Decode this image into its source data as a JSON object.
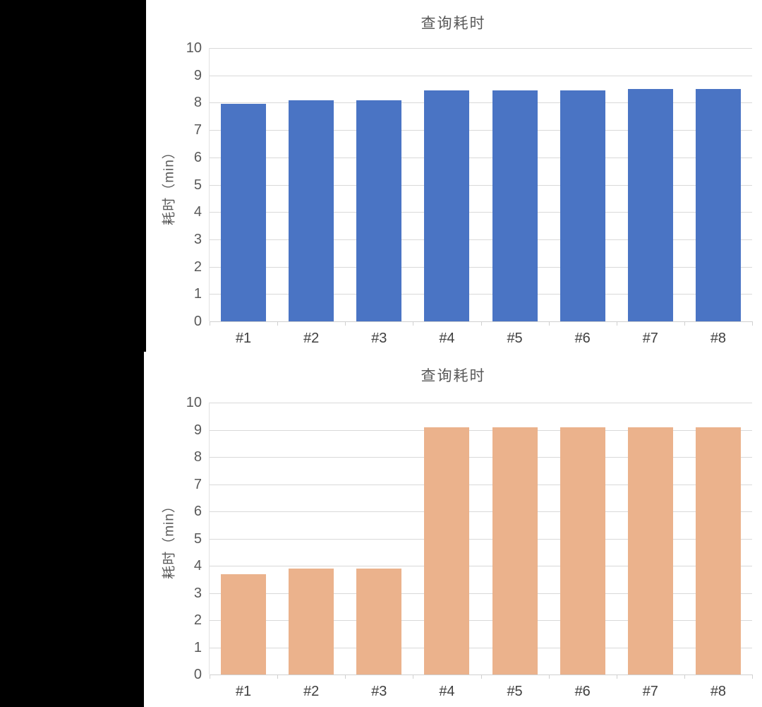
{
  "window": {
    "background_color": "#FFFFFF",
    "left_mask_color": "#000000"
  },
  "chart_data": [
    {
      "type": "bar",
      "title": "查询耗时",
      "xlabel": "",
      "ylabel": "耗时（min）",
      "categories": [
        "#1",
        "#2",
        "#3",
        "#4",
        "#5",
        "#6",
        "#7",
        "#8"
      ],
      "values": [
        7.95,
        8.1,
        8.1,
        8.45,
        8.45,
        8.45,
        8.5,
        8.5
      ],
      "ylim": [
        0,
        10
      ],
      "ytick_step": 1,
      "yticks": [
        0,
        1,
        2,
        3,
        4,
        5,
        6,
        7,
        8,
        9,
        10
      ],
      "grid": true,
      "legend": "none",
      "bar_color": "#4A74C4"
    },
    {
      "type": "bar",
      "title": "查询耗时",
      "xlabel": "",
      "ylabel": "耗时（min）",
      "categories": [
        "#1",
        "#2",
        "#3",
        "#4",
        "#5",
        "#6",
        "#7",
        "#8"
      ],
      "values": [
        3.7,
        3.9,
        3.9,
        9.1,
        9.1,
        9.1,
        9.1,
        9.1
      ],
      "ylim": [
        0,
        10
      ],
      "ytick_step": 1,
      "yticks": [
        0,
        1,
        2,
        3,
        4,
        5,
        6,
        7,
        8,
        9,
        10
      ],
      "grid": true,
      "legend": "none",
      "bar_color": "#EBB28C"
    }
  ],
  "style": {
    "gridline_color": "#D9D9D9",
    "axis_line_color": "#D0D0D0",
    "tick_label_color": "#595959",
    "category_label_color": "#404040",
    "title_color": "#595959"
  }
}
